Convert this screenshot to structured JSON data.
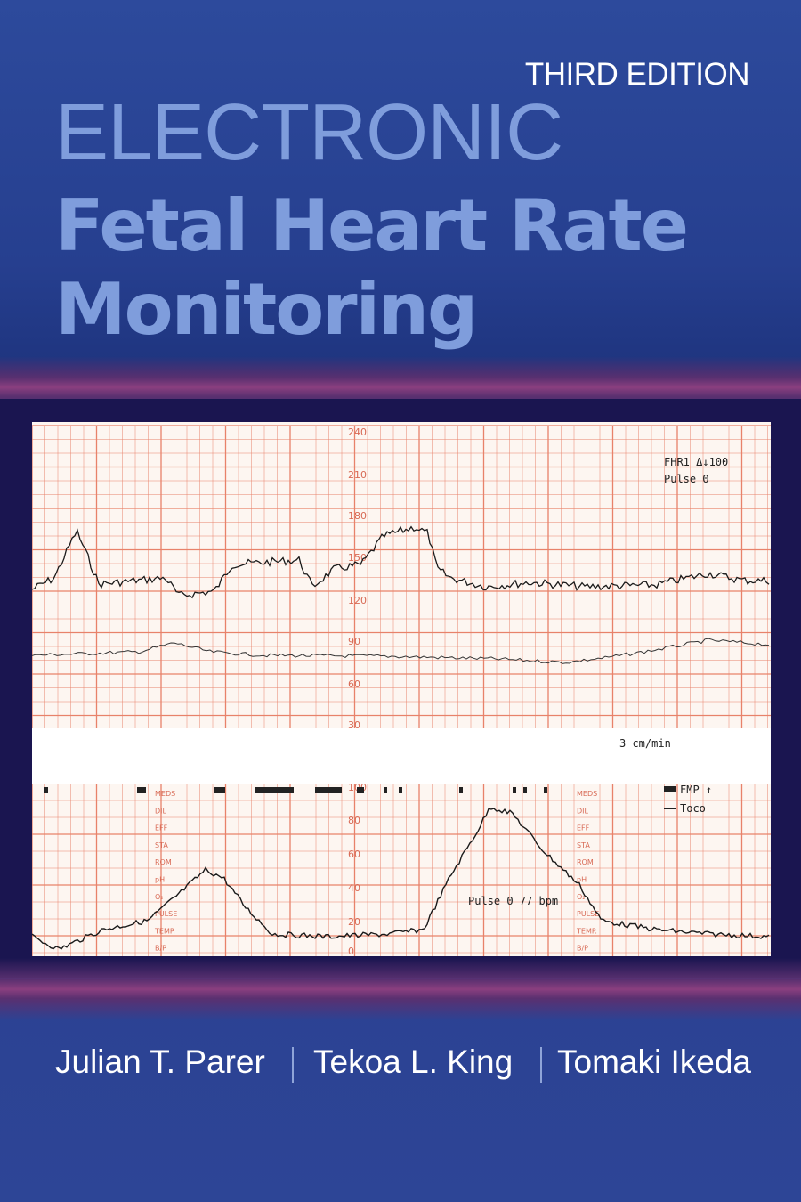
{
  "edition": "THIRD EDITION",
  "title": {
    "line1": "ELECTRONIC",
    "line2": "Fetal Heart Rate",
    "line3": "Monitoring"
  },
  "authors": [
    "Julian T. Parer",
    "Tekoa L. King",
    "Tomaki Ikeda"
  ],
  "colors": {
    "background": "#2b4390",
    "title": "#7f9ddc",
    "band": "#8a3f7f",
    "grid": "#e8826a",
    "trace": "#222222"
  },
  "tracing": {
    "upper_scale": [
      "240",
      "210",
      "180",
      "150",
      "120",
      "90",
      "60",
      "30"
    ],
    "legend_upper": [
      "FHR1 Δ↓100",
      "Pulse Θ"
    ],
    "speed_label": "3 cm/min",
    "lower_scale": [
      "100",
      "80",
      "60",
      "40",
      "20",
      "0"
    ],
    "side_labels": [
      "MEDS",
      "DIL",
      "EFF",
      "STA",
      "ROM",
      "pH",
      "O₂",
      "PULSE",
      "TEMP.",
      "B/P"
    ],
    "legend_lower": [
      "FMP ↑",
      "Toco"
    ],
    "pulse_annotation": "Pulse Θ 77 bpm"
  }
}
